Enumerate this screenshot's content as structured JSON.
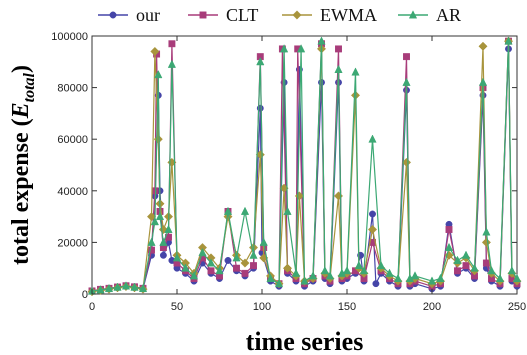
{
  "chart_data": {
    "type": "line",
    "title": "",
    "xlabel": "time series",
    "ylabel_main": "total expense (",
    "ylabel_var": "E",
    "ylabel_sub": "total",
    "ylabel_close": ")",
    "xlim": [
      0,
      250
    ],
    "ylim": [
      0,
      100000
    ],
    "xticks": [
      0,
      50,
      100,
      150,
      200,
      250
    ],
    "yticks": [
      0,
      20000,
      40000,
      60000,
      80000,
      100000
    ],
    "xtick_labels": [
      "0",
      "50",
      "100",
      "150",
      "200",
      "250"
    ],
    "ytick_labels": [
      "0",
      "20000",
      "40000",
      "60000",
      "80000",
      "100000"
    ],
    "grid": false,
    "legend_position": "top",
    "series": [
      {
        "name": "our",
        "color": "#4545a8",
        "marker": "circle",
        "values": [
          [
            0,
            1000
          ],
          [
            5,
            1500
          ],
          [
            10,
            2000
          ],
          [
            15,
            2500
          ],
          [
            20,
            3000
          ],
          [
            25,
            2500
          ],
          [
            30,
            2000
          ],
          [
            35,
            15000
          ],
          [
            37,
            38000
          ],
          [
            39,
            77000
          ],
          [
            40,
            40000
          ],
          [
            42,
            15000
          ],
          [
            45,
            20000
          ],
          [
            47,
            13000
          ],
          [
            50,
            10000
          ],
          [
            55,
            8000
          ],
          [
            60,
            5000
          ],
          [
            65,
            12000
          ],
          [
            70,
            8000
          ],
          [
            75,
            6000
          ],
          [
            80,
            13000
          ],
          [
            85,
            9000
          ],
          [
            90,
            7000
          ],
          [
            95,
            10000
          ],
          [
            99,
            72000
          ],
          [
            100,
            16000
          ],
          [
            105,
            5000
          ],
          [
            110,
            3000
          ],
          [
            113,
            82000
          ],
          [
            115,
            8000
          ],
          [
            120,
            5000
          ],
          [
            122,
            87000
          ],
          [
            125,
            3000
          ],
          [
            130,
            5000
          ],
          [
            135,
            82000
          ],
          [
            137,
            6000
          ],
          [
            140,
            4000
          ],
          [
            145,
            82000
          ],
          [
            147,
            5000
          ],
          [
            150,
            6000
          ],
          [
            155,
            8000
          ],
          [
            158,
            15000
          ],
          [
            160,
            5000
          ],
          [
            165,
            31000
          ],
          [
            167,
            4000
          ],
          [
            170,
            8000
          ],
          [
            175,
            5000
          ],
          [
            180,
            3000
          ],
          [
            185,
            79000
          ],
          [
            187,
            3000
          ],
          [
            190,
            4000
          ],
          [
            200,
            2000
          ],
          [
            205,
            3000
          ],
          [
            210,
            27000
          ],
          [
            215,
            8000
          ],
          [
            220,
            10000
          ],
          [
            225,
            6000
          ],
          [
            230,
            77000
          ],
          [
            232,
            10000
          ],
          [
            235,
            5000
          ],
          [
            240,
            3000
          ],
          [
            245,
            95000
          ],
          [
            247,
            5000
          ],
          [
            250,
            3000
          ]
        ]
      },
      {
        "name": "CLT",
        "color": "#a83c7a",
        "marker": "square",
        "values": [
          [
            0,
            1200
          ],
          [
            5,
            1800
          ],
          [
            10,
            2200
          ],
          [
            15,
            2700
          ],
          [
            20,
            3200
          ],
          [
            25,
            2800
          ],
          [
            30,
            2200
          ],
          [
            35,
            17000
          ],
          [
            37,
            40000
          ],
          [
            38,
            93000
          ],
          [
            40,
            32000
          ],
          [
            42,
            18000
          ],
          [
            45,
            22000
          ],
          [
            47,
            97000
          ],
          [
            50,
            12000
          ],
          [
            55,
            9000
          ],
          [
            60,
            6000
          ],
          [
            65,
            14000
          ],
          [
            70,
            9000
          ],
          [
            75,
            7000
          ],
          [
            80,
            32000
          ],
          [
            85,
            10000
          ],
          [
            90,
            8000
          ],
          [
            95,
            11000
          ],
          [
            99,
            92000
          ],
          [
            101,
            18000
          ],
          [
            105,
            6000
          ],
          [
            110,
            4000
          ],
          [
            112,
            95000
          ],
          [
            115,
            9000
          ],
          [
            120,
            6000
          ],
          [
            121,
            95000
          ],
          [
            125,
            4000
          ],
          [
            130,
            6000
          ],
          [
            135,
            97000
          ],
          [
            137,
            7000
          ],
          [
            140,
            5000
          ],
          [
            145,
            95000
          ],
          [
            147,
            6000
          ],
          [
            150,
            7000
          ],
          [
            155,
            9000
          ],
          [
            160,
            6000
          ],
          [
            165,
            20000
          ],
          [
            170,
            9000
          ],
          [
            175,
            6000
          ],
          [
            180,
            4000
          ],
          [
            185,
            92000
          ],
          [
            187,
            4000
          ],
          [
            190,
            5000
          ],
          [
            200,
            3000
          ],
          [
            205,
            4000
          ],
          [
            210,
            25000
          ],
          [
            215,
            9000
          ],
          [
            220,
            11000
          ],
          [
            225,
            7000
          ],
          [
            230,
            80000
          ],
          [
            232,
            12000
          ],
          [
            235,
            6000
          ],
          [
            240,
            4000
          ],
          [
            245,
            98000
          ],
          [
            247,
            6000
          ],
          [
            250,
            4000
          ]
        ]
      },
      {
        "name": "EWMA",
        "color": "#a8943c",
        "marker": "diamond",
        "values": [
          [
            0,
            900
          ],
          [
            5,
            1400
          ],
          [
            10,
            1900
          ],
          [
            15,
            2400
          ],
          [
            20,
            2900
          ],
          [
            25,
            2400
          ],
          [
            30,
            1900
          ],
          [
            35,
            30000
          ],
          [
            37,
            94000
          ],
          [
            39,
            60000
          ],
          [
            40,
            35000
          ],
          [
            42,
            25000
          ],
          [
            45,
            30000
          ],
          [
            47,
            51000
          ],
          [
            50,
            15000
          ],
          [
            55,
            12000
          ],
          [
            60,
            8000
          ],
          [
            65,
            18000
          ],
          [
            70,
            14000
          ],
          [
            75,
            10000
          ],
          [
            80,
            30000
          ],
          [
            85,
            15000
          ],
          [
            90,
            12000
          ],
          [
            95,
            18000
          ],
          [
            99,
            54000
          ],
          [
            101,
            14000
          ],
          [
            105,
            7000
          ],
          [
            110,
            4000
          ],
          [
            113,
            41000
          ],
          [
            115,
            10000
          ],
          [
            120,
            7000
          ],
          [
            122,
            38000
          ],
          [
            125,
            5000
          ],
          [
            130,
            6000
          ],
          [
            135,
            95000
          ],
          [
            137,
            8000
          ],
          [
            140,
            6000
          ],
          [
            145,
            38000
          ],
          [
            147,
            7000
          ],
          [
            150,
            8000
          ],
          [
            155,
            77000
          ],
          [
            157,
            10000
          ],
          [
            160,
            8000
          ],
          [
            165,
            25000
          ],
          [
            170,
            10000
          ],
          [
            175,
            7000
          ],
          [
            180,
            5000
          ],
          [
            185,
            51000
          ],
          [
            187,
            5000
          ],
          [
            190,
            6000
          ],
          [
            200,
            4000
          ],
          [
            205,
            5000
          ],
          [
            210,
            15000
          ],
          [
            215,
            12000
          ],
          [
            220,
            14000
          ],
          [
            225,
            9000
          ],
          [
            230,
            96000
          ],
          [
            232,
            20000
          ],
          [
            235,
            8000
          ],
          [
            240,
            5000
          ],
          [
            245,
            98000
          ],
          [
            247,
            8000
          ],
          [
            250,
            5000
          ]
        ]
      },
      {
        "name": "AR",
        "color": "#3ca874",
        "marker": "triangle",
        "values": [
          [
            0,
            1100
          ],
          [
            5,
            1600
          ],
          [
            10,
            2100
          ],
          [
            15,
            2600
          ],
          [
            20,
            3100
          ],
          [
            25,
            2600
          ],
          [
            30,
            2100
          ],
          [
            35,
            20000
          ],
          [
            37,
            28000
          ],
          [
            39,
            85000
          ],
          [
            40,
            30000
          ],
          [
            42,
            20000
          ],
          [
            45,
            25000
          ],
          [
            47,
            89000
          ],
          [
            50,
            14000
          ],
          [
            55,
            10000
          ],
          [
            60,
            7000
          ],
          [
            65,
            16000
          ],
          [
            70,
            12000
          ],
          [
            75,
            9000
          ],
          [
            80,
            32000
          ],
          [
            85,
            14000
          ],
          [
            90,
            32000
          ],
          [
            95,
            15000
          ],
          [
            99,
            90000
          ],
          [
            101,
            20000
          ],
          [
            105,
            6000
          ],
          [
            110,
            4000
          ],
          [
            113,
            95000
          ],
          [
            115,
            32000
          ],
          [
            120,
            8000
          ],
          [
            123,
            95000
          ],
          [
            125,
            5000
          ],
          [
            130,
            7000
          ],
          [
            135,
            98000
          ],
          [
            137,
            9000
          ],
          [
            140,
            7000
          ],
          [
            145,
            87000
          ],
          [
            147,
            8000
          ],
          [
            150,
            9000
          ],
          [
            155,
            86000
          ],
          [
            157,
            11000
          ],
          [
            160,
            9000
          ],
          [
            165,
            60000
          ],
          [
            170,
            11000
          ],
          [
            175,
            8000
          ],
          [
            180,
            6000
          ],
          [
            185,
            82000
          ],
          [
            187,
            6000
          ],
          [
            190,
            7000
          ],
          [
            200,
            5000
          ],
          [
            205,
            6000
          ],
          [
            210,
            18000
          ],
          [
            215,
            13000
          ],
          [
            220,
            15000
          ],
          [
            225,
            10000
          ],
          [
            230,
            82000
          ],
          [
            232,
            24000
          ],
          [
            235,
            9000
          ],
          [
            240,
            6000
          ],
          [
            245,
            98000
          ],
          [
            247,
            9000
          ],
          [
            250,
            6000
          ]
        ]
      }
    ]
  }
}
